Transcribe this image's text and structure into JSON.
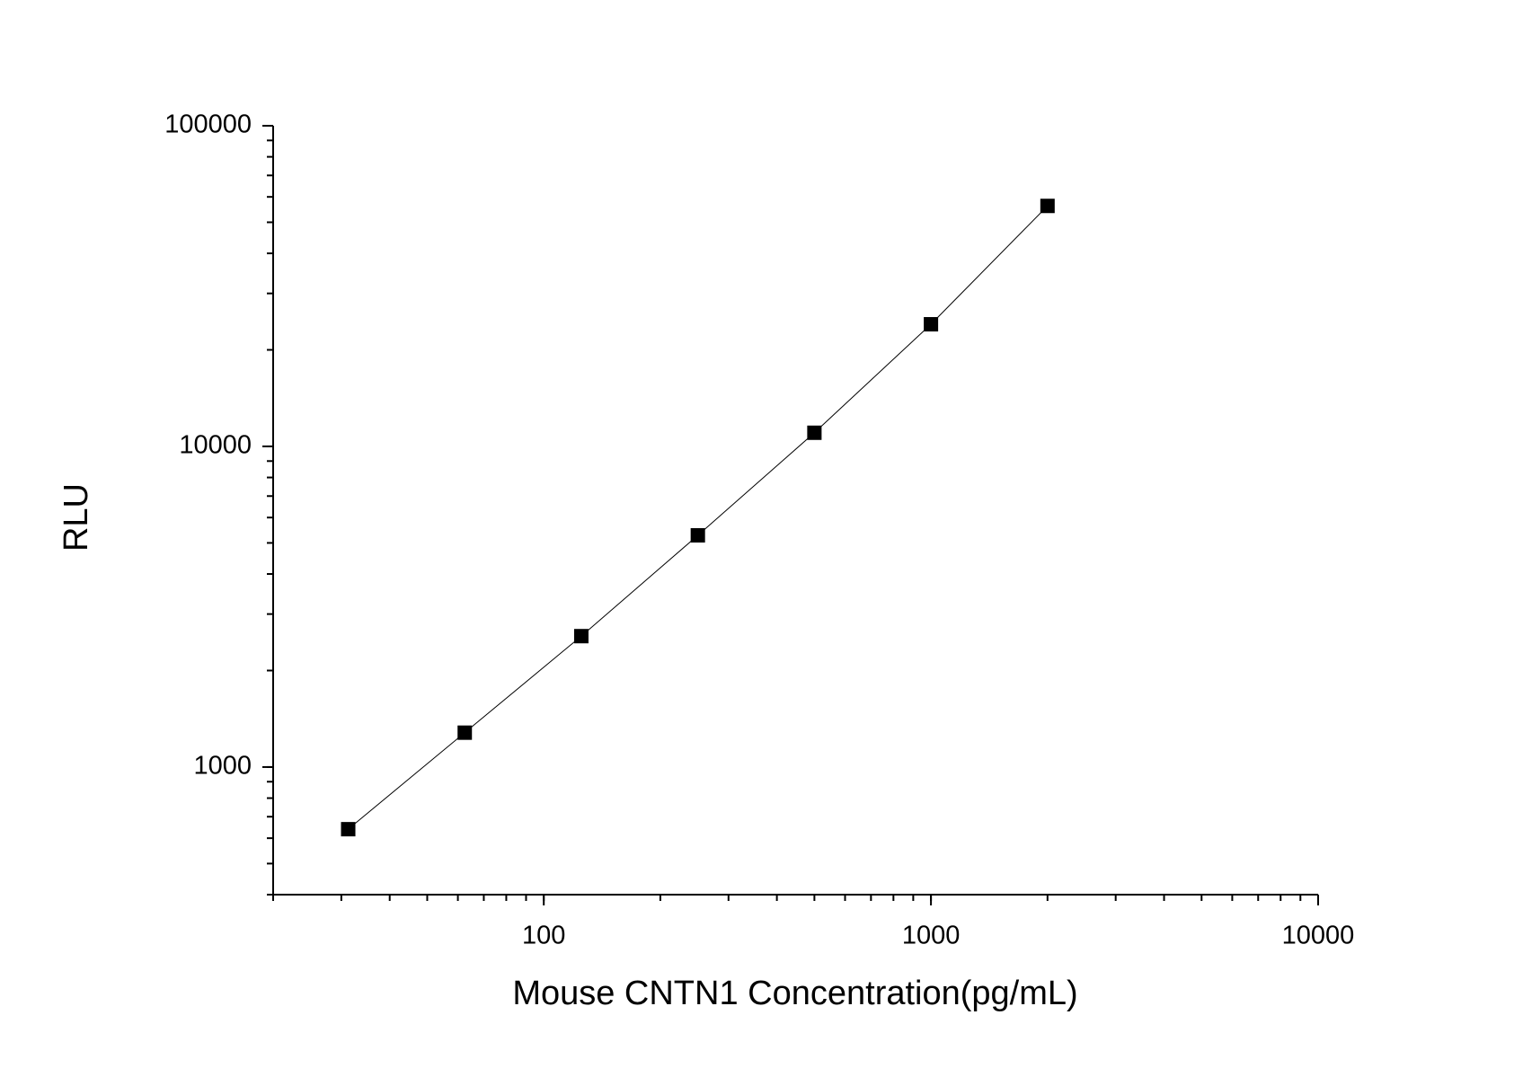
{
  "chart_data": {
    "type": "scatter",
    "x_label": "Mouse CNTN1 Concentration(pg/mL)",
    "y_label": "RLU",
    "x": [
      31.25,
      62.5,
      125,
      250,
      500,
      1000,
      2000
    ],
    "series": [
      {
        "color": "#000000",
        "values": [
          640,
          1280,
          2560,
          5280,
          11030,
          24040,
          56230
        ]
      }
    ],
    "xlim": [
      20,
      10000
    ],
    "ylim": [
      400,
      100000
    ],
    "xticks": [
      100,
      1000,
      10000
    ],
    "yticks": [
      1000,
      10000,
      100000
    ],
    "x_log": true,
    "y_log": true,
    "connect": true,
    "minor_ticks": true
  }
}
